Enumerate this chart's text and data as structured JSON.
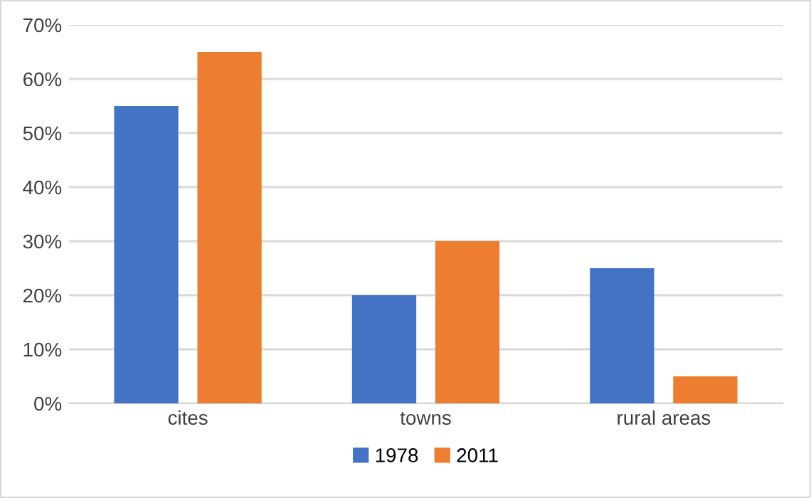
{
  "chart_data": {
    "type": "bar",
    "categories": [
      "cites",
      "towns",
      "rural areas"
    ],
    "series": [
      {
        "name": "1978",
        "color": "#4472c4",
        "values": [
          55,
          20,
          25
        ]
      },
      {
        "name": "2011",
        "color": "#ed7d31",
        "values": [
          65,
          30,
          5
        ]
      }
    ],
    "ylim": [
      0,
      70
    ],
    "yticks": [
      {
        "value": 0,
        "label": "0%"
      },
      {
        "value": 10,
        "label": "10%"
      },
      {
        "value": 20,
        "label": "20%"
      },
      {
        "value": 30,
        "label": "30%"
      },
      {
        "value": 40,
        "label": "40%"
      },
      {
        "value": 50,
        "label": "50%"
      },
      {
        "value": 60,
        "label": "60%"
      },
      {
        "value": 70,
        "label": "70%"
      }
    ],
    "grid": "y",
    "legend": "bottom"
  }
}
